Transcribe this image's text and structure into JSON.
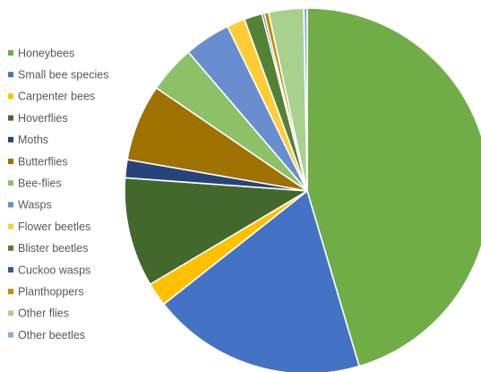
{
  "chart_data": {
    "type": "pie",
    "title": "",
    "legend_position": "left",
    "start_angle": "top, clockwise",
    "slices": [
      {
        "label": "Honeybees",
        "value": 45.5,
        "color": "#70AD47"
      },
      {
        "label": "Small bee species",
        "value": 19.0,
        "color": "#4472C4"
      },
      {
        "label": "Carpenter bees",
        "value": 2.1,
        "color": "#FFC000"
      },
      {
        "label": "Hoverflies",
        "value": 9.7,
        "color": "#43682B"
      },
      {
        "label": "Moths",
        "value": 1.6,
        "color": "#264478"
      },
      {
        "label": "Butterflies",
        "value": 6.8,
        "color": "#9E7100"
      },
      {
        "label": "Bee-flies",
        "value": 4.2,
        "color": "#8CC168"
      },
      {
        "label": "Wasps",
        "value": 4.1,
        "color": "#698ED0"
      },
      {
        "label": "Flower beetles",
        "value": 1.6,
        "color": "#FFCD33"
      },
      {
        "label": "Blister beetles",
        "value": 1.6,
        "color": "#548235"
      },
      {
        "label": "Cuckoo wasps",
        "value": 0.2,
        "color": "#335AA1"
      },
      {
        "label": "Planthoppers",
        "value": 0.4,
        "color": "#BF8F00"
      },
      {
        "label": "Other flies",
        "value": 3.1,
        "color": "#A9D18E"
      },
      {
        "label": "Other beetles",
        "value": 0.3,
        "color": "#8FAADC"
      }
    ]
  }
}
